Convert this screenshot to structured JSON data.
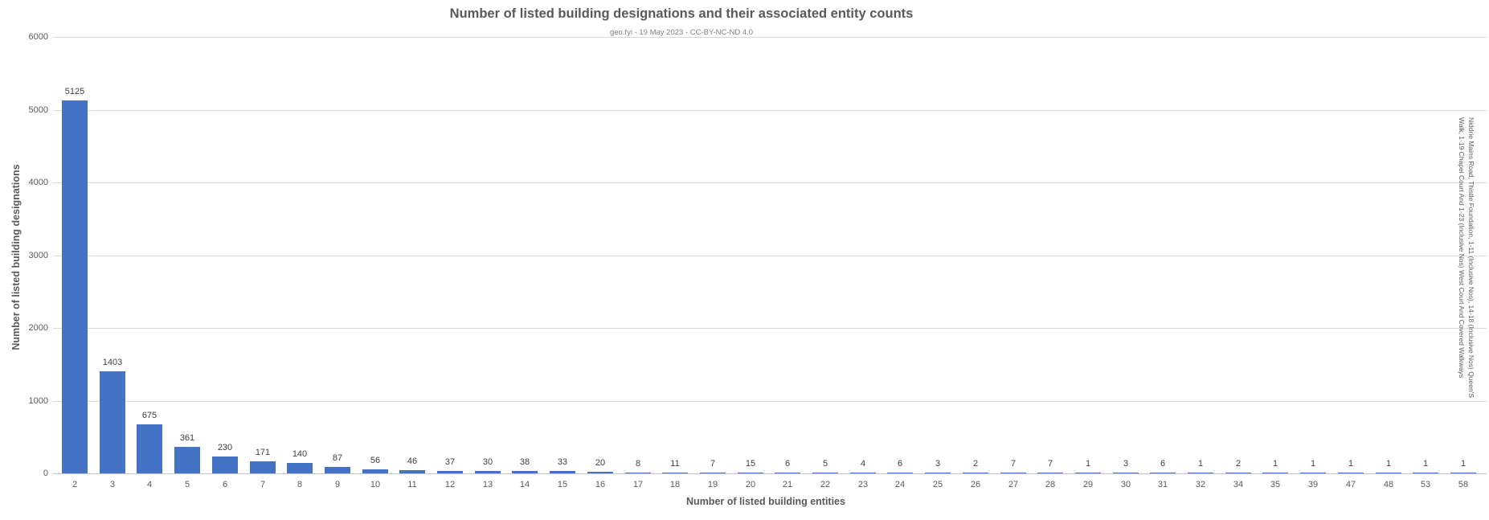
{
  "chart": {
    "title": "Number of listed building designations and their associated entity counts",
    "subtitle": "geo.fyi - 19 May 2023 - CC-BY-NC-ND 4.0",
    "colors": {
      "bar": "#4472C4",
      "gridline": "#d9d9d9",
      "axis_line": "#c6c6c6",
      "title_text": "#595959",
      "tick_text": "#595959",
      "value_label_text": "#404040"
    }
  },
  "chart_data": {
    "type": "bar",
    "title": "Number of listed building designations and their associated entity counts",
    "subtitle": "geo.fyi - 19 May 2023 - CC-BY-NC-ND 4.0",
    "xlabel": "Number of listed building entities",
    "ylabel": "Number of listed building designations",
    "categories": [
      "2",
      "3",
      "4",
      "5",
      "6",
      "7",
      "8",
      "9",
      "10",
      "11",
      "12",
      "13",
      "14",
      "15",
      "16",
      "17",
      "18",
      "19",
      "20",
      "21",
      "22",
      "23",
      "24",
      "25",
      "26",
      "27",
      "28",
      "29",
      "30",
      "31",
      "32",
      "34",
      "35",
      "39",
      "47",
      "48",
      "53",
      "58"
    ],
    "values": [
      5125,
      1403,
      675,
      361,
      230,
      171,
      140,
      87,
      56,
      46,
      37,
      30,
      38,
      33,
      20,
      8,
      11,
      7,
      15,
      6,
      5,
      4,
      6,
      3,
      2,
      7,
      7,
      1,
      3,
      6,
      1,
      2,
      1,
      1,
      1,
      1,
      1,
      1
    ],
    "ylim": [
      0,
      6000
    ],
    "yticks": [
      0,
      1000,
      2000,
      3000,
      4000,
      5000,
      6000
    ],
    "grid": "horizontal",
    "legend": "none",
    "bar_color": "#4472C4",
    "annotation": {
      "target_category": "58",
      "line1": "Niddrie Mains Road, Thistle Foundation, 1-11 (Inclusive Nos), 14-18 (Inclusive Nos) Queen'S",
      "line2": "Walk, 1-19 Chapel Court And 1-23 (Inclusive Nos) West Court And Covered Walkways"
    }
  }
}
